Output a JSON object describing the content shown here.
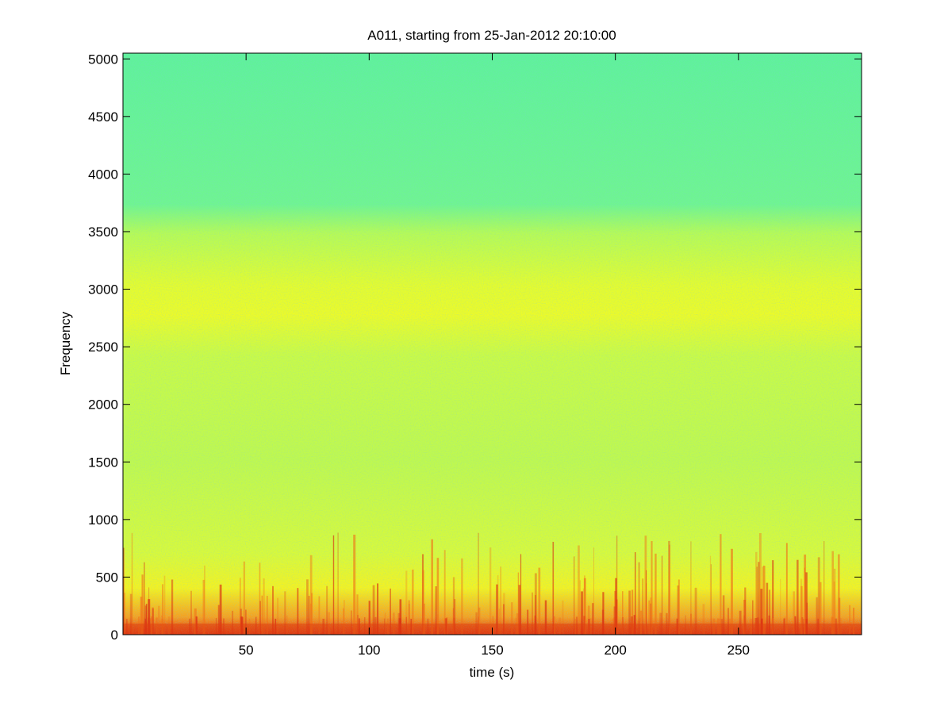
{
  "chart_data": {
    "type": "spectrogram",
    "title": "A011, starting from 25-Jan-2012 20:10:00",
    "xlabel": "time (s)",
    "ylabel": "Frequency",
    "xlim": [
      0,
      300
    ],
    "xticks": [
      50,
      100,
      150,
      200,
      250
    ],
    "ylim": [
      0,
      5050
    ],
    "yticks": [
      0,
      500,
      1000,
      1500,
      2000,
      2500,
      3000,
      3500,
      4000,
      4500,
      5000
    ]
  }
}
